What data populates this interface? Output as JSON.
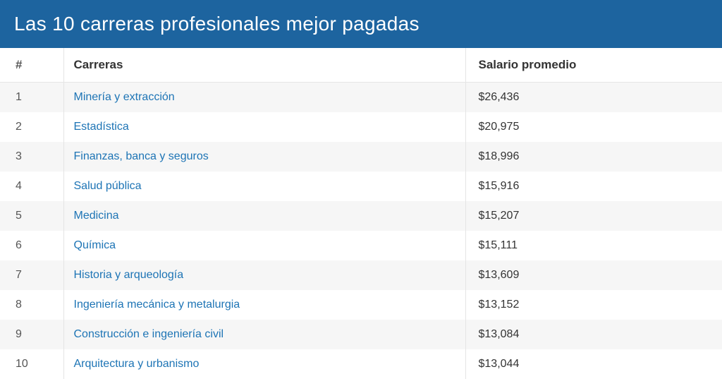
{
  "title": "Las 10 carreras profesionales mejor pagadas",
  "colors": {
    "header_bg": "#1d649f",
    "header_text": "#ffffff",
    "link": "#1d74b5",
    "row_alt_bg": "#f6f6f6",
    "border": "#e5e5e5",
    "text": "#333333"
  },
  "table": {
    "columns": {
      "rank": "#",
      "career": "Carreras",
      "salary": "Salario promedio"
    },
    "rows": [
      {
        "rank": "1",
        "career": "Minería y extracción",
        "salary": "$26,436"
      },
      {
        "rank": "2",
        "career": "Estadística",
        "salary": "$20,975"
      },
      {
        "rank": "3",
        "career": "Finanzas, banca y seguros",
        "salary": "$18,996"
      },
      {
        "rank": "4",
        "career": "Salud pública",
        "salary": "$15,916"
      },
      {
        "rank": "5",
        "career": "Medicina",
        "salary": "$15,207"
      },
      {
        "rank": "6",
        "career": "Química",
        "salary": "$15,111"
      },
      {
        "rank": "7",
        "career": "Historia y arqueología",
        "salary": "$13,609"
      },
      {
        "rank": "8",
        "career": "Ingeniería mecánica y metalurgia",
        "salary": "$13,152"
      },
      {
        "rank": "9",
        "career": "Construcción e ingeniería civil",
        "salary": "$13,084"
      },
      {
        "rank": "10",
        "career": "Arquitectura y urbanismo",
        "salary": "$13,044"
      }
    ]
  }
}
